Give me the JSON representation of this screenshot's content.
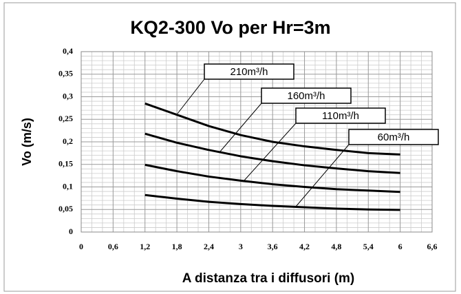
{
  "chart_data": {
    "type": "line",
    "title": "KQ2-300 Vo per Hr=3m",
    "x_label": "A distanza tra i diffusori (m)",
    "y_label": "Vo (m/s)",
    "x": [
      1.2,
      1.8,
      2.4,
      3,
      3.6,
      4.2,
      4.8,
      5.4,
      6
    ],
    "series": [
      {
        "name": "210m³/h",
        "color": "#000000",
        "values": [
          0.285,
          0.26,
          0.235,
          0.215,
          0.2,
          0.19,
          0.182,
          0.175,
          0.172
        ]
      },
      {
        "name": "160m³/h",
        "color": "#000000",
        "values": [
          0.218,
          0.198,
          0.182,
          0.168,
          0.157,
          0.148,
          0.141,
          0.135,
          0.131
        ]
      },
      {
        "name": "110m³/h",
        "color": "#000000",
        "values": [
          0.149,
          0.135,
          0.123,
          0.114,
          0.106,
          0.1,
          0.095,
          0.092,
          0.089
        ]
      },
      {
        "name": "60m³/h",
        "color": "#000000",
        "values": [
          0.082,
          0.074,
          0.067,
          0.062,
          0.058,
          0.055,
          0.052,
          0.05,
          0.049
        ]
      }
    ],
    "xlim": [
      0,
      6.6
    ],
    "xticks": [
      0,
      {
        "value": 0.6,
        "label": "0,6"
      },
      {
        "value": 1.2,
        "label": "1,2"
      },
      {
        "value": 1.8,
        "label": "1,8"
      },
      {
        "value": 2.4,
        "label": "2,4"
      },
      3,
      {
        "value": 3.6,
        "label": "3,6"
      },
      {
        "value": 4.2,
        "label": "4,2"
      },
      {
        "value": 4.8,
        "label": "4,8"
      },
      {
        "value": 5.4,
        "label": "5,4"
      },
      6,
      {
        "value": 6.6,
        "label": "6,6"
      }
    ],
    "ylim": [
      0,
      0.4
    ],
    "yticks": [
      0,
      {
        "value": 0.05,
        "label": "0,05"
      },
      {
        "value": 0.1,
        "label": "0,1"
      },
      {
        "value": 0.15,
        "label": "0,15"
      },
      {
        "value": 0.2,
        "label": "0,2"
      },
      {
        "value": 0.25,
        "label": "0,25"
      },
      {
        "value": 0.3,
        "label": "0,3"
      },
      {
        "value": 0.35,
        "label": "0,35"
      },
      {
        "value": 0.4,
        "label": "0,4"
      }
    ],
    "grid": true
  }
}
